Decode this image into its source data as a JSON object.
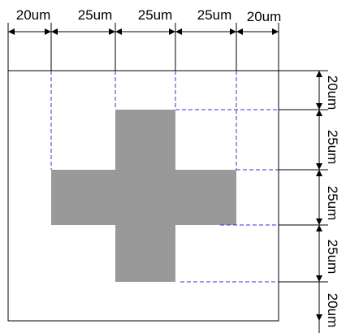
{
  "top_labels": [
    "20um",
    "25um",
    "25um",
    "25um",
    "20um"
  ],
  "right_labels": [
    "20um",
    "25um",
    "25um",
    "25um",
    "20um"
  ],
  "colors": {
    "shape_fill": "#999999",
    "guide_dash": "#3333cc",
    "line": "#000000"
  }
}
